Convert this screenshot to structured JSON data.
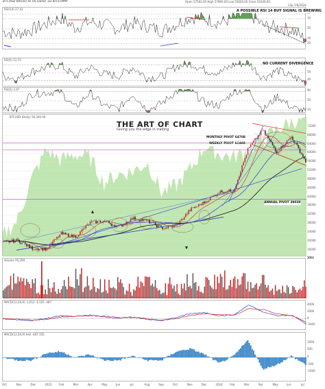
{
  "header": {
    "title": "BTCUSD Bitcoin to US Dollar  1D  BITSTAMP",
    "ohlc": "Open 57562.00  High 57960.00  Low 55626.00  Close 56340.00",
    "right_tag": "Clip 7/6/2024"
  },
  "notes": {
    "rsi_signal": "A POSSIBLE RSI 14 BUY SIGNAL IS BREWING",
    "no_divergence": "NO CURRENT DIVERGENCE",
    "monthly_pivot": "MONTHLY PIVOT 64708",
    "weekly_pivot": "WEEKLY PIVOT 61488",
    "annual_pivot": "ANNUAL PIVOT 39038"
  },
  "logo": {
    "main": "THE ART OF CHART",
    "sub": "Giving you the edge in trading"
  },
  "panels": {
    "rsi14": "RSI(14) 27.43",
    "rsi5": "RSI(5) 12.72",
    "rsi2": "RSI(2) 2.67",
    "price": "BTCUSD (Daily) 56,340.00",
    "volume": "Volume 95,299",
    "macd1": "MACD(12,26,9) -1,612  -1,125  -487",
    "macd2": "MACD(12,26,9) Hist -487.355"
  },
  "colors": {
    "bull": "#cc2222",
    "bear": "#222222",
    "area": "#b9e3a8",
    "rsi_fill": "#4a8f3a",
    "pivot_line": "#c060c0",
    "hist": "#3a86c8",
    "blue_line": "#2a3ad0",
    "red_line": "#d42020"
  },
  "chart_data": [
    {
      "type": "line",
      "title": "RSI(14) 27.43",
      "ylim": [
        10,
        90
      ],
      "ticks": [
        "80",
        "70",
        "50",
        "30",
        "20"
      ],
      "x": [
        "Oct",
        "Nov",
        "Dec",
        "2023",
        "Feb",
        "Mar",
        "Apr",
        "May",
        "Jun",
        "Jul",
        "Aug",
        "Sep",
        "Oct",
        "Nov",
        "Dec",
        "2024",
        "Feb",
        "Mar",
        "Apr",
        "May",
        "Jun",
        "Jul"
      ],
      "values": [
        45,
        40,
        48,
        60,
        72,
        52,
        64,
        58,
        50,
        62,
        55,
        46,
        60,
        74,
        70,
        62,
        72,
        82,
        56,
        52,
        48,
        27
      ]
    },
    {
      "type": "line",
      "title": "RSI(5) 12.72",
      "ylim": [
        0,
        100
      ],
      "ticks": [
        "80",
        "50",
        "20"
      ],
      "x": [
        "Oct",
        "Nov",
        "Dec",
        "2023",
        "Feb",
        "Mar",
        "Apr",
        "May",
        "Jun",
        "Jul",
        "Aug",
        "Sep",
        "Oct",
        "Nov",
        "Dec",
        "2024",
        "Feb",
        "Mar",
        "Apr",
        "May",
        "Jun",
        "Jul"
      ],
      "values": [
        40,
        25,
        55,
        70,
        80,
        35,
        72,
        45,
        38,
        70,
        30,
        35,
        75,
        85,
        60,
        50,
        82,
        88,
        30,
        60,
        35,
        13
      ]
    },
    {
      "type": "line",
      "title": "RSI(2) 2.67",
      "ylim": [
        0,
        100
      ],
      "ticks": [
        "90",
        "50",
        "10"
      ],
      "x": [
        "Oct",
        "Nov",
        "Dec",
        "2023",
        "Feb",
        "Mar",
        "Apr",
        "May",
        "Jun",
        "Jul",
        "Aug",
        "Sep",
        "Oct",
        "Nov",
        "Dec",
        "2024",
        "Feb",
        "Mar",
        "Apr",
        "May",
        "Jun",
        "Jul"
      ],
      "values": [
        30,
        10,
        80,
        85,
        90,
        20,
        85,
        30,
        15,
        80,
        10,
        40,
        90,
        95,
        40,
        30,
        92,
        95,
        10,
        70,
        20,
        3
      ]
    },
    {
      "type": "line",
      "title": "BTCUSD (Daily) 56,340.00",
      "ylim": [
        14000,
        76000
      ],
      "ticks": [
        "72000",
        "68000",
        "64000",
        "60000",
        "56000",
        "52000",
        "48000",
        "44000",
        "40000",
        "36000",
        "32000",
        "28000",
        "24000",
        "20000",
        "16000"
      ],
      "x": [
        "Oct",
        "Nov",
        "Dec",
        "2023",
        "Feb",
        "Mar",
        "Apr",
        "May",
        "Jun",
        "Jul",
        "Aug",
        "Sep",
        "Oct",
        "Nov",
        "Dec",
        "2024",
        "Feb",
        "Mar",
        "Apr",
        "May",
        "Jun",
        "Jul"
      ],
      "series": [
        {
          "name": "BTCUSD",
          "values": [
            19500,
            20500,
            16800,
            16600,
            23500,
            22000,
            28500,
            29200,
            26500,
            30500,
            29300,
            26000,
            27000,
            34500,
            37800,
            42500,
            43000,
            62000,
            70500,
            60500,
            67500,
            56340
          ]
        }
      ],
      "pivots": [
        64708,
        61488,
        39038
      ]
    },
    {
      "type": "bar",
      "title": "Volume 95,299",
      "x": [
        "Oct",
        "Nov",
        "Dec",
        "2023",
        "Feb",
        "Mar",
        "Apr",
        "May",
        "Jun",
        "Jul",
        "Aug",
        "Sep",
        "Oct",
        "Nov",
        "Dec",
        "2024",
        "Feb",
        "Mar",
        "Apr",
        "May",
        "Jun",
        "Jul"
      ],
      "values": [
        30,
        95,
        40,
        35,
        45,
        70,
        40,
        30,
        45,
        35,
        55,
        30,
        40,
        50,
        45,
        60,
        55,
        60,
        50,
        35,
        30,
        40
      ]
    },
    {
      "type": "line",
      "title": "MACD(12,26,9) -1,612  -1,125  -487",
      "x": [
        "Oct",
        "Nov",
        "Dec",
        "2023",
        "Feb",
        "Mar",
        "Apr",
        "May",
        "Jun",
        "Jul",
        "Aug",
        "Sep",
        "Oct",
        "Nov",
        "Dec",
        "2024",
        "Feb",
        "Mar",
        "Apr",
        "May",
        "Jun",
        "Jul"
      ],
      "series": [
        {
          "name": "MACD",
          "values": [
            0,
            -300,
            -600,
            100,
            900,
            700,
            1100,
            600,
            200,
            500,
            -200,
            -600,
            400,
            1600,
            1800,
            900,
            1200,
            4200,
            2000,
            900,
            1100,
            -1612
          ]
        },
        {
          "name": "Signal",
          "values": [
            0,
            -100,
            -400,
            -200,
            500,
            700,
            900,
            800,
            400,
            400,
            0,
            -400,
            0,
            1000,
            1600,
            1300,
            1100,
            3000,
            2800,
            1400,
            1000,
            -1125
          ]
        }
      ]
    },
    {
      "type": "bar",
      "title": "MACD(12,26,9) Hist -487.355",
      "x": [
        "Oct",
        "Nov",
        "Dec",
        "2023",
        "Feb",
        "Mar",
        "Apr",
        "May",
        "Jun",
        "Jul",
        "Aug",
        "Sep",
        "Oct",
        "Nov",
        "Dec",
        "2024",
        "Feb",
        "Mar",
        "Apr",
        "May",
        "Jun",
        "Jul"
      ],
      "values": [
        0,
        -200,
        -200,
        300,
        400,
        0,
        200,
        -200,
        -200,
        100,
        -200,
        -200,
        400,
        600,
        200,
        -400,
        100,
        1200,
        -800,
        -500,
        100,
        -487
      ]
    }
  ]
}
